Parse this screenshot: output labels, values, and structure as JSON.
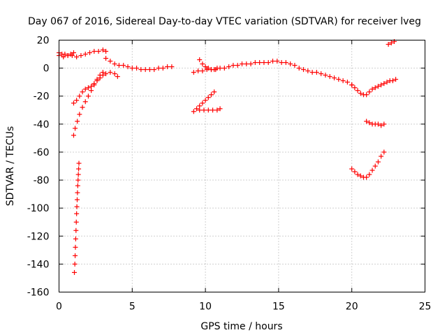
{
  "chart_data": {
    "type": "scatter",
    "title": "Day 067 of 2016, Sidereal Day-to-day VTEC variation (SDTVAR) for receiver lveg",
    "xlabel": "GPS time / hours",
    "ylabel": "SDTVAR / TECUs",
    "xlim": [
      0,
      25
    ],
    "ylim": [
      -160,
      20
    ],
    "xticks": [
      "0",
      "5",
      "10",
      "15",
      "20",
      "25"
    ],
    "yticks": [
      "20",
      "0",
      "-20",
      "-40",
      "-60",
      "-80",
      "-100",
      "-120",
      "-140",
      "-160"
    ],
    "grid": true,
    "marker": "plus",
    "color": "#ff0000",
    "series": [
      {
        "name": "s1",
        "x": [
          0.0,
          0.3,
          0.6,
          0.9,
          1.2,
          1.5,
          1.8,
          2.1,
          2.4,
          2.7,
          3.0,
          3.2
        ],
        "y": [
          9,
          8,
          9,
          9,
          8,
          9,
          10,
          11,
          12,
          12,
          13,
          12
        ]
      },
      {
        "name": "s2",
        "x": [
          0.0,
          0.2,
          0.4,
          0.6,
          0.8,
          1.0
        ],
        "y": [
          11,
          10,
          10,
          9,
          10,
          11
        ]
      },
      {
        "name": "s3",
        "x": [
          3.2,
          3.5,
          3.8,
          4.1,
          4.4,
          4.7,
          5.0,
          5.3,
          5.6,
          5.9,
          6.2,
          6.5,
          6.8,
          7.1,
          7.4,
          7.7
        ],
        "y": [
          7,
          5,
          3,
          2,
          2,
          1,
          0,
          0,
          -1,
          -1,
          -1,
          -1,
          0,
          0,
          1,
          1
        ]
      },
      {
        "name": "s4",
        "x": [
          1.0,
          1.2,
          1.4,
          1.6,
          1.8,
          2.0,
          2.2,
          2.4,
          2.6,
          2.8,
          3.0,
          3.2,
          3.5,
          3.8,
          4.0
        ],
        "y": [
          -25,
          -23,
          -20,
          -17,
          -15,
          -14,
          -13,
          -11,
          -9,
          -7,
          -5,
          -4,
          -3,
          -4,
          -6
        ]
      },
      {
        "name": "s5",
        "x": [
          1.0,
          1.1,
          1.25,
          1.4,
          1.6,
          1.8,
          2.0,
          2.2,
          2.4,
          2.6,
          2.8,
          3.0
        ],
        "y": [
          -48,
          -43,
          -38,
          -33,
          -28,
          -24,
          -20,
          -16,
          -12,
          -8,
          -5,
          -3
        ]
      },
      {
        "name": "s6",
        "x": [
          1.05,
          1.08,
          1.1,
          1.12,
          1.14,
          1.16,
          1.18,
          1.2,
          1.22,
          1.24,
          1.26,
          1.28,
          1.3,
          1.32,
          1.34,
          1.36
        ],
        "y": [
          -146,
          -140,
          -134,
          -128,
          -122,
          -116,
          -110,
          -104,
          -99,
          -94,
          -89,
          -84,
          -80,
          -76,
          -72,
          -68
        ]
      },
      {
        "name": "s7",
        "x": [
          9.2,
          9.5,
          9.8,
          10.1,
          10.4,
          10.7,
          11.0,
          11.3,
          11.6,
          11.9,
          12.2,
          12.5,
          12.8,
          13.1,
          13.4,
          13.7,
          14.0,
          14.3,
          14.6,
          14.9,
          15.2,
          15.5,
          15.8,
          16.1,
          16.4,
          16.7,
          17.0,
          17.3,
          17.6,
          17.9,
          18.2,
          18.5,
          18.8,
          19.1,
          19.4,
          19.7,
          20.0
        ],
        "y": [
          -3,
          -2,
          -2,
          -1,
          -1,
          -1,
          0,
          0,
          1,
          2,
          2,
          3,
          3,
          3,
          4,
          4,
          4,
          4,
          5,
          5,
          4,
          4,
          3,
          2,
          0,
          -1,
          -2,
          -3,
          -3,
          -4,
          -5,
          -6,
          -7,
          -8,
          -9,
          -10,
          -12
        ]
      },
      {
        "name": "s8",
        "x": [
          9.6,
          9.8,
          10.0,
          10.2,
          10.4,
          10.6,
          10.8
        ],
        "y": [
          6,
          3,
          1,
          0,
          -1,
          -1,
          0
        ]
      },
      {
        "name": "s9",
        "x": [
          9.2,
          9.4,
          9.6,
          9.8,
          10.0,
          10.2,
          10.4,
          10.6
        ],
        "y": [
          -31,
          -29,
          -27,
          -25,
          -23,
          -21,
          -19,
          -17
        ]
      },
      {
        "name": "s10",
        "x": [
          9.6,
          9.9,
          10.2,
          10.5,
          10.8,
          11.0
        ],
        "y": [
          -30,
          -30,
          -30,
          -30,
          -30,
          -29
        ]
      },
      {
        "name": "s11",
        "x": [
          20.0,
          20.2,
          20.4,
          20.6,
          20.8,
          21.0,
          21.2,
          21.4,
          21.6,
          21.8,
          22.0,
          22.2,
          22.4,
          22.6,
          22.8,
          23.0
        ],
        "y": [
          -12,
          -14,
          -16,
          -18,
          -19,
          -19,
          -17,
          -15,
          -14,
          -13,
          -12,
          -11,
          -10,
          -9,
          -9,
          -8
        ]
      },
      {
        "name": "s12",
        "x": [
          21.0,
          21.2,
          21.4,
          21.6,
          21.8,
          22.0,
          22.2
        ],
        "y": [
          -38,
          -39,
          -40,
          -40,
          -40,
          -41,
          -40
        ]
      },
      {
        "name": "s13",
        "x": [
          20.0,
          20.2,
          20.4,
          20.6,
          20.8,
          21.0,
          21.2,
          21.4,
          21.6,
          21.8,
          22.0,
          22.2
        ],
        "y": [
          -72,
          -74,
          -76,
          -77,
          -78,
          -78,
          -76,
          -73,
          -70,
          -67,
          -63,
          -60
        ]
      },
      {
        "name": "s14",
        "x": [
          22.5,
          22.7,
          22.9
        ],
        "y": [
          17,
          18,
          19
        ]
      }
    ]
  }
}
